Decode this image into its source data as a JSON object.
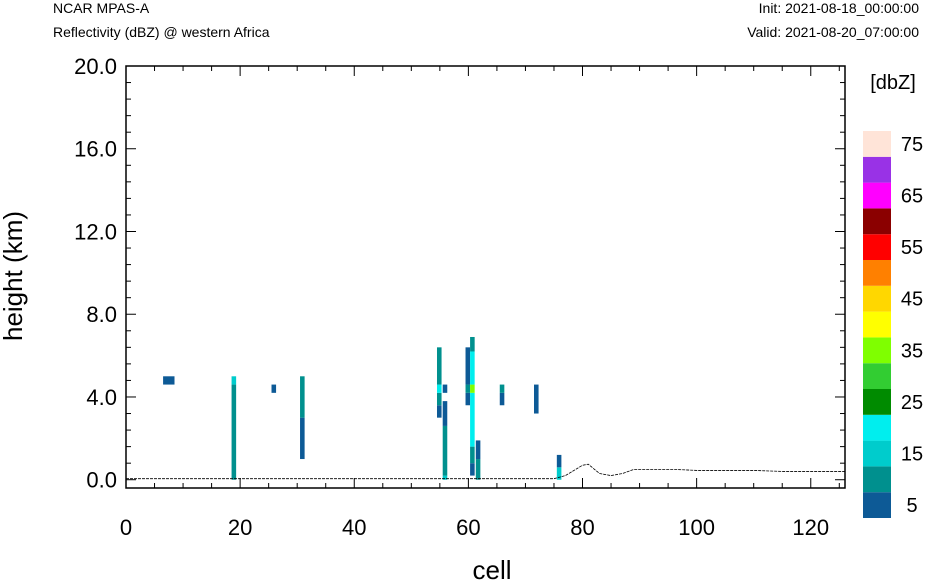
{
  "header": {
    "title": "NCAR MPAS-A",
    "subtitle": "Reflectivity (dBZ) @ western Africa",
    "init": "Init: 2021-08-18_00:00:00",
    "valid": "Valid: 2021-08-20_07:00:00"
  },
  "chart_data": {
    "type": "heatmap",
    "xlabel": "cell",
    "ylabel": "height (km)",
    "xlim": [
      0,
      126
    ],
    "ylim": [
      -0.4,
      20.0
    ],
    "x_ticks": [
      "0",
      "20",
      "40",
      "60",
      "80",
      "100",
      "120"
    ],
    "y_ticks": [
      "0.0",
      "4.0",
      "8.0",
      "12.0",
      "16.0",
      "20.0"
    ],
    "colorbar": {
      "title": "[dbZ]",
      "levels": [
        5,
        10,
        15,
        20,
        25,
        30,
        35,
        40,
        45,
        50,
        55,
        60,
        65,
        70,
        75
      ],
      "tick_labels": [
        "5",
        "15",
        "25",
        "35",
        "45",
        "55",
        "65",
        "75"
      ],
      "colors": [
        "#0d5a96",
        "#00908e",
        "#00cccc",
        "#00eeee",
        "#008b00",
        "#32cd32",
        "#7fff00",
        "#ffff00",
        "#ffd700",
        "#ff8000",
        "#ff0000",
        "#8b0000",
        "#ff00ff",
        "#9932e6",
        "#ffe4d8"
      ]
    },
    "cells": [
      {
        "x0": 6.5,
        "x1": 8.5,
        "y0": 4.6,
        "y1": 5.0,
        "dbz": 5
      },
      {
        "x0": 18.5,
        "x1": 19.3,
        "y0": 0.0,
        "y1": 4.6,
        "dbz": 10
      },
      {
        "x0": 18.5,
        "x1": 19.3,
        "y0": 4.6,
        "y1": 5.0,
        "dbz": 15
      },
      {
        "x0": 25.5,
        "x1": 26.3,
        "y0": 4.2,
        "y1": 4.6,
        "dbz": 5
      },
      {
        "x0": 30.5,
        "x1": 31.3,
        "y0": 1.0,
        "y1": 3.0,
        "dbz": 5
      },
      {
        "x0": 30.5,
        "x1": 31.3,
        "y0": 3.0,
        "y1": 5.0,
        "dbz": 10
      },
      {
        "x0": 54.5,
        "x1": 55.3,
        "y0": 3.0,
        "y1": 3.6,
        "dbz": 5
      },
      {
        "x0": 54.5,
        "x1": 55.3,
        "y0": 3.6,
        "y1": 4.2,
        "dbz": 10
      },
      {
        "x0": 54.5,
        "x1": 55.3,
        "y0": 4.2,
        "y1": 4.6,
        "dbz": 20
      },
      {
        "x0": 54.5,
        "x1": 55.3,
        "y0": 4.6,
        "y1": 6.4,
        "dbz": 10
      },
      {
        "x0": 55.5,
        "x1": 56.3,
        "y0": 0.0,
        "y1": 0.2,
        "dbz": 15
      },
      {
        "x0": 55.5,
        "x1": 56.3,
        "y0": 0.2,
        "y1": 2.6,
        "dbz": 10
      },
      {
        "x0": 55.5,
        "x1": 56.3,
        "y0": 2.6,
        "y1": 3.8,
        "dbz": 5
      },
      {
        "x0": 55.5,
        "x1": 56.3,
        "y0": 4.2,
        "y1": 4.6,
        "dbz": 5
      },
      {
        "x0": 59.5,
        "x1": 60.3,
        "y0": 3.6,
        "y1": 4.2,
        "dbz": 5
      },
      {
        "x0": 59.5,
        "x1": 60.3,
        "y0": 4.2,
        "y1": 4.6,
        "dbz": 10
      },
      {
        "x0": 59.5,
        "x1": 60.3,
        "y0": 4.6,
        "y1": 6.4,
        "dbz": 5
      },
      {
        "x0": 60.3,
        "x1": 61.1,
        "y0": 0.2,
        "y1": 0.8,
        "dbz": 5
      },
      {
        "x0": 60.3,
        "x1": 61.1,
        "y0": 0.8,
        "y1": 1.6,
        "dbz": 10
      },
      {
        "x0": 60.3,
        "x1": 61.1,
        "y0": 1.6,
        "y1": 4.2,
        "dbz": 20
      },
      {
        "x0": 60.3,
        "x1": 61.1,
        "y0": 4.2,
        "y1": 4.6,
        "dbz": 35
      },
      {
        "x0": 60.3,
        "x1": 61.1,
        "y0": 4.6,
        "y1": 6.2,
        "dbz": 20
      },
      {
        "x0": 60.3,
        "x1": 61.1,
        "y0": 6.2,
        "y1": 6.9,
        "dbz": 10
      },
      {
        "x0": 61.3,
        "x1": 62.1,
        "y0": 0.0,
        "y1": 1.0,
        "dbz": 10
      },
      {
        "x0": 61.3,
        "x1": 62.1,
        "y0": 1.0,
        "y1": 1.9,
        "dbz": 5
      },
      {
        "x0": 65.5,
        "x1": 66.3,
        "y0": 3.6,
        "y1": 4.2,
        "dbz": 5
      },
      {
        "x0": 65.5,
        "x1": 66.3,
        "y0": 4.2,
        "y1": 4.6,
        "dbz": 10
      },
      {
        "x0": 71.5,
        "x1": 72.3,
        "y0": 3.2,
        "y1": 4.6,
        "dbz": 5
      },
      {
        "x0": 75.5,
        "x1": 76.3,
        "y0": 0.0,
        "y1": 0.6,
        "dbz": 15
      },
      {
        "x0": 75.5,
        "x1": 76.3,
        "y0": 0.6,
        "y1": 1.2,
        "dbz": 5
      }
    ],
    "terrain": {
      "x": [
        0,
        10,
        20,
        40,
        60,
        70,
        75,
        77,
        80,
        81,
        83,
        85,
        87,
        89,
        92,
        96,
        100,
        105,
        110,
        115,
        120,
        126
      ],
      "y": [
        0.05,
        0.05,
        0.05,
        0.05,
        0.05,
        0.05,
        0.05,
        0.2,
        0.7,
        0.75,
        0.3,
        0.2,
        0.3,
        0.5,
        0.5,
        0.5,
        0.45,
        0.45,
        0.45,
        0.4,
        0.4,
        0.4
      ]
    }
  }
}
